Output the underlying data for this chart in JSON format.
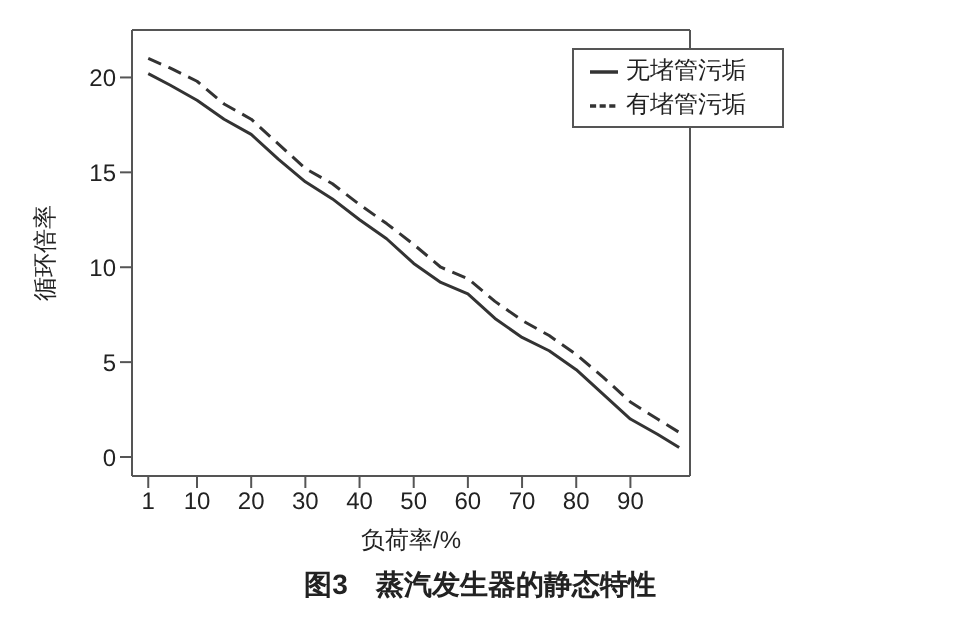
{
  "chart_data": {
    "type": "line",
    "title": "图3　蒸汽发生器的静态特性",
    "xlabel": "负荷率/%",
    "ylabel": "循环倍率",
    "x": [
      1,
      5,
      10,
      15,
      20,
      25,
      30,
      35,
      40,
      45,
      50,
      55,
      60,
      65,
      70,
      75,
      80,
      85,
      90,
      95,
      99
    ],
    "series": [
      {
        "name": "无堵管污垢",
        "color": "#333333",
        "line_style": "solid",
        "values": [
          20.2,
          19.6,
          18.8,
          17.8,
          17.0,
          15.7,
          14.5,
          13.6,
          12.5,
          11.5,
          10.2,
          9.2,
          8.6,
          7.3,
          6.3,
          5.6,
          4.6,
          3.3,
          2.0,
          1.2,
          0.5
        ]
      },
      {
        "name": "有堵管污垢",
        "color": "#333333",
        "line_style": "dashed",
        "values": [
          21.0,
          20.5,
          19.8,
          18.6,
          17.8,
          16.5,
          15.2,
          14.4,
          13.3,
          12.3,
          11.2,
          10.0,
          9.4,
          8.2,
          7.2,
          6.4,
          5.4,
          4.2,
          2.9,
          2.0,
          1.3
        ]
      }
    ],
    "xlim": [
      -2,
      101
    ],
    "xticks": [
      1,
      10,
      20,
      30,
      40,
      50,
      60,
      70,
      80,
      90
    ],
    "ylim": [
      -1,
      22.5
    ],
    "yticks": [
      0,
      5,
      10,
      15,
      20
    ],
    "grid": false,
    "legend": "top right",
    "marker": "none"
  }
}
